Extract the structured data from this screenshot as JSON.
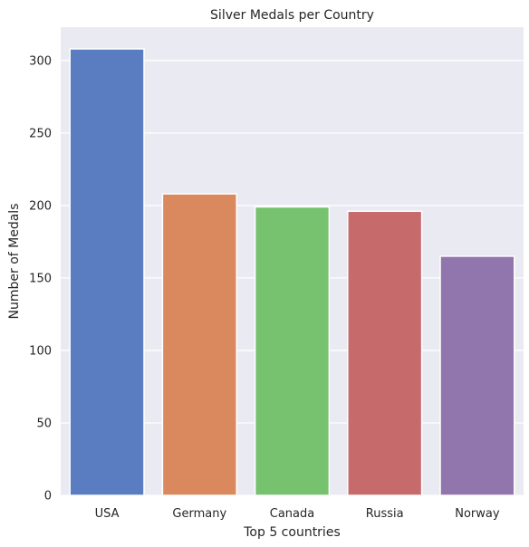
{
  "chart_data": {
    "type": "bar",
    "title": "Silver Medals per Country",
    "xlabel": "Top 5 countries",
    "ylabel": "Number of Medals",
    "categories": [
      "USA",
      "Germany",
      "Canada",
      "Russia",
      "Norway"
    ],
    "values": [
      308,
      208,
      199,
      196,
      165
    ],
    "colors": [
      "#5a7dc2",
      "#d9895d",
      "#77c26f",
      "#c66a6b",
      "#9175ad"
    ],
    "ylim": [
      0,
      323
    ],
    "yticks": [
      0,
      50,
      100,
      150,
      200,
      250,
      300
    ],
    "grid": true,
    "legend": "none",
    "background": "#eaeaf2",
    "gridColor": "#ffffff"
  }
}
